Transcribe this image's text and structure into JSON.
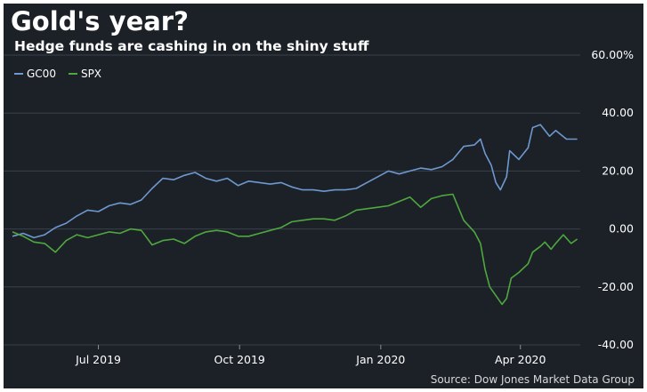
{
  "title": "Gold's year?",
  "subtitle": "Hedge funds are cashing in on the shiny stuff",
  "source": "Source: Dow Jones Market Data Group",
  "colors": {
    "background": "#1c2128",
    "gc00": "#6e98cf",
    "spx": "#4ea83e",
    "grid": "#3a414a",
    "text": "#ffffff"
  },
  "chart_data": {
    "type": "line",
    "title": "Gold's year?",
    "subtitle": "Hedge funds are cashing in on the shiny stuff",
    "xlabel": "",
    "ylabel": "",
    "ylim": [
      -40,
      60
    ],
    "y_ticks": [
      {
        "value": 60,
        "label": "60.00%"
      },
      {
        "value": 40,
        "label": "40.00"
      },
      {
        "value": 20,
        "label": "20.00"
      },
      {
        "value": 0,
        "label": "0.00"
      },
      {
        "value": -20,
        "label": "-20.00"
      },
      {
        "value": -40,
        "label": "-40.00"
      }
    ],
    "x_ticks": [
      {
        "date": "2019-07-01",
        "label": "Jul 2019"
      },
      {
        "date": "2019-10-01",
        "label": "Oct 2019"
      },
      {
        "date": "2020-01-01",
        "label": "Jan 2020"
      },
      {
        "date": "2020-04-01",
        "label": "Apr 2020"
      }
    ],
    "x_range": [
      "2019-05-06",
      "2020-05-10"
    ],
    "grid": true,
    "legend_position": "top-left",
    "series": [
      {
        "name": "GC00",
        "color": "#6e98cf",
        "points": [
          [
            "2019-05-06",
            -2.5
          ],
          [
            "2019-05-13",
            -1.5
          ],
          [
            "2019-05-20",
            -3.0
          ],
          [
            "2019-05-27",
            -2.0
          ],
          [
            "2019-06-03",
            0.5
          ],
          [
            "2019-06-10",
            2.0
          ],
          [
            "2019-06-17",
            4.5
          ],
          [
            "2019-06-24",
            6.5
          ],
          [
            "2019-07-01",
            6.0
          ],
          [
            "2019-07-08",
            8.0
          ],
          [
            "2019-07-15",
            9.0
          ],
          [
            "2019-07-22",
            8.5
          ],
          [
            "2019-07-29",
            10.0
          ],
          [
            "2019-08-05",
            14.0
          ],
          [
            "2019-08-12",
            17.5
          ],
          [
            "2019-08-19",
            17.0
          ],
          [
            "2019-08-26",
            18.5
          ],
          [
            "2019-09-02",
            19.5
          ],
          [
            "2019-09-09",
            17.5
          ],
          [
            "2019-09-16",
            16.5
          ],
          [
            "2019-09-23",
            17.5
          ],
          [
            "2019-09-30",
            15.0
          ],
          [
            "2019-10-07",
            16.5
          ],
          [
            "2019-10-14",
            16.0
          ],
          [
            "2019-10-21",
            15.5
          ],
          [
            "2019-10-28",
            16.0
          ],
          [
            "2019-11-04",
            14.5
          ],
          [
            "2019-11-11",
            13.5
          ],
          [
            "2019-11-18",
            13.5
          ],
          [
            "2019-11-25",
            13.0
          ],
          [
            "2019-12-02",
            13.5
          ],
          [
            "2019-12-09",
            13.5
          ],
          [
            "2019-12-16",
            14.0
          ],
          [
            "2019-12-23",
            16.0
          ],
          [
            "2019-12-30",
            18.0
          ],
          [
            "2020-01-06",
            20.0
          ],
          [
            "2020-01-13",
            19.0
          ],
          [
            "2020-01-20",
            20.0
          ],
          [
            "2020-01-27",
            21.0
          ],
          [
            "2020-02-03",
            20.5
          ],
          [
            "2020-02-10",
            21.5
          ],
          [
            "2020-02-17",
            24.0
          ],
          [
            "2020-02-24",
            28.5
          ],
          [
            "2020-03-02",
            29.0
          ],
          [
            "2020-03-06",
            31.0
          ],
          [
            "2020-03-09",
            26.0
          ],
          [
            "2020-03-13",
            22.0
          ],
          [
            "2020-03-16",
            16.0
          ],
          [
            "2020-03-19",
            13.5
          ],
          [
            "2020-03-23",
            18.0
          ],
          [
            "2020-03-25",
            27.0
          ],
          [
            "2020-03-31",
            24.0
          ],
          [
            "2020-04-06",
            28.0
          ],
          [
            "2020-04-09",
            35.0
          ],
          [
            "2020-04-14",
            36.0
          ],
          [
            "2020-04-20",
            32.0
          ],
          [
            "2020-04-24",
            34.0
          ],
          [
            "2020-05-01",
            31.0
          ],
          [
            "2020-05-08",
            31.0
          ]
        ]
      },
      {
        "name": "SPX",
        "color": "#4ea83e",
        "points": [
          [
            "2019-05-06",
            -1.0
          ],
          [
            "2019-05-13",
            -2.5
          ],
          [
            "2019-05-20",
            -4.5
          ],
          [
            "2019-05-27",
            -5.0
          ],
          [
            "2019-06-03",
            -8.0
          ],
          [
            "2019-06-10",
            -4.0
          ],
          [
            "2019-06-17",
            -2.0
          ],
          [
            "2019-06-24",
            -3.0
          ],
          [
            "2019-07-01",
            -2.0
          ],
          [
            "2019-07-08",
            -1.0
          ],
          [
            "2019-07-15",
            -1.5
          ],
          [
            "2019-07-22",
            0.0
          ],
          [
            "2019-07-29",
            -0.5
          ],
          [
            "2019-08-05",
            -5.5
          ],
          [
            "2019-08-12",
            -4.0
          ],
          [
            "2019-08-19",
            -3.5
          ],
          [
            "2019-08-26",
            -5.0
          ],
          [
            "2019-09-02",
            -2.5
          ],
          [
            "2019-09-09",
            -1.0
          ],
          [
            "2019-09-16",
            -0.5
          ],
          [
            "2019-09-23",
            -1.0
          ],
          [
            "2019-09-30",
            -2.5
          ],
          [
            "2019-10-07",
            -2.5
          ],
          [
            "2019-10-14",
            -1.5
          ],
          [
            "2019-10-21",
            -0.5
          ],
          [
            "2019-10-28",
            0.5
          ],
          [
            "2019-11-04",
            2.5
          ],
          [
            "2019-11-11",
            3.0
          ],
          [
            "2019-11-18",
            3.5
          ],
          [
            "2019-11-25",
            3.5
          ],
          [
            "2019-12-02",
            3.0
          ],
          [
            "2019-12-09",
            4.5
          ],
          [
            "2019-12-16",
            6.5
          ],
          [
            "2019-12-23",
            7.0
          ],
          [
            "2019-12-30",
            7.5
          ],
          [
            "2020-01-06",
            8.0
          ],
          [
            "2020-01-13",
            9.5
          ],
          [
            "2020-01-20",
            11.0
          ],
          [
            "2020-01-27",
            7.5
          ],
          [
            "2020-02-03",
            10.5
          ],
          [
            "2020-02-10",
            11.5
          ],
          [
            "2020-02-17",
            12.0
          ],
          [
            "2020-02-24",
            3.0
          ],
          [
            "2020-03-02",
            -1.0
          ],
          [
            "2020-03-06",
            -5.0
          ],
          [
            "2020-03-09",
            -14.0
          ],
          [
            "2020-03-12",
            -20.0
          ],
          [
            "2020-03-16",
            -23.0
          ],
          [
            "2020-03-20",
            -26.0
          ],
          [
            "2020-03-23",
            -24.0
          ],
          [
            "2020-03-26",
            -17.0
          ],
          [
            "2020-03-31",
            -15.0
          ],
          [
            "2020-04-06",
            -12.0
          ],
          [
            "2020-04-09",
            -8.0
          ],
          [
            "2020-04-14",
            -6.0
          ],
          [
            "2020-04-17",
            -4.5
          ],
          [
            "2020-04-21",
            -7.0
          ],
          [
            "2020-04-24",
            -5.0
          ],
          [
            "2020-04-29",
            -2.0
          ],
          [
            "2020-05-04",
            -5.0
          ],
          [
            "2020-05-08",
            -3.5
          ]
        ]
      }
    ]
  }
}
